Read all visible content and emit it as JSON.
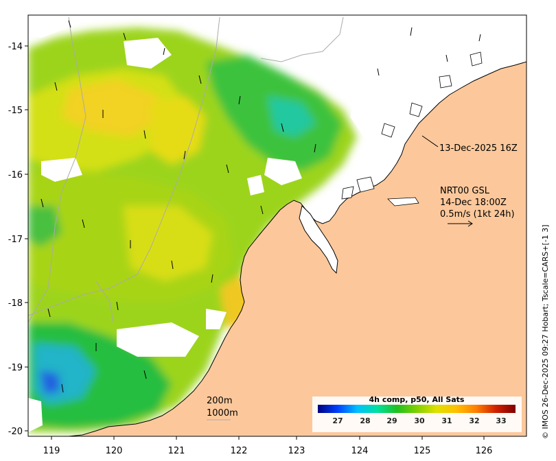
{
  "map": {
    "lon_ticks": [
      "119",
      "120",
      "121",
      "122",
      "123",
      "124",
      "125",
      "126"
    ],
    "lat_ticks": [
      "-14",
      "-15",
      "-16",
      "-17",
      "-18",
      "-19",
      "-20"
    ],
    "pass_time": "13-Dec-2025 16Z",
    "current_model": "NRT00 GSL",
    "current_time": "14-Dec 18:00Z",
    "current_scale": "0.5m/s (1kt 24h)",
    "isobath_1": "200m",
    "isobath_2": "1000m",
    "side_credit": "© IMOS 26-Dec-2025 09:27 Hobart; Tscale=CARS+[-1 3]",
    "colors": {
      "land": "#fcc89b",
      "coast": "#000000",
      "isobath": "#aaaaaa",
      "no_data": "#ffffff"
    }
  },
  "colorbar": {
    "title": "4h comp, p50, All Sats",
    "labels": [
      "27",
      "28",
      "29",
      "30",
      "31",
      "32",
      "33"
    ],
    "stops": [
      "#00007f",
      "#0040ff",
      "#00c0ff",
      "#00e0a0",
      "#20c020",
      "#80d000",
      "#e0e000",
      "#ffc000",
      "#ff8000",
      "#d02000",
      "#7f0000"
    ]
  }
}
